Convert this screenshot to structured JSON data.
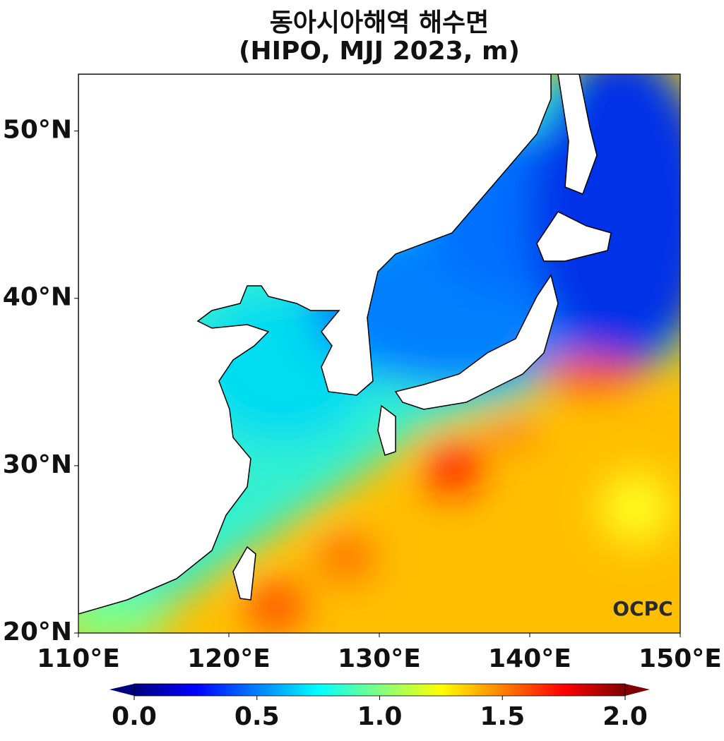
{
  "title": "동아시아해역 해수면",
  "subtitle": "(HIPO, MJJ 2023, m)",
  "map": {
    "xlim": [
      110,
      150
    ],
    "ylim": [
      20,
      53.4
    ],
    "xticks": [
      {
        "value": 110,
        "label": "110°E"
      },
      {
        "value": 120,
        "label": "120°E"
      },
      {
        "value": 130,
        "label": "130°E"
      },
      {
        "value": 140,
        "label": "140°E"
      },
      {
        "value": 150,
        "label": "150°E"
      }
    ],
    "yticks": [
      {
        "value": 20,
        "label": "20°N"
      },
      {
        "value": 30,
        "label": "30°N"
      },
      {
        "value": 40,
        "label": "40°N"
      },
      {
        "value": 50,
        "label": "50°N"
      }
    ]
  },
  "colorbar": {
    "range": [
      0,
      2
    ],
    "ticks": [
      {
        "value": 0,
        "label": "0.0"
      },
      0.5,
      {
        "value": 1,
        "label": "1.0"
      },
      1.5,
      {
        "value": 2,
        "label": "2.0"
      }
    ]
  },
  "watermark": "OCPC"
}
